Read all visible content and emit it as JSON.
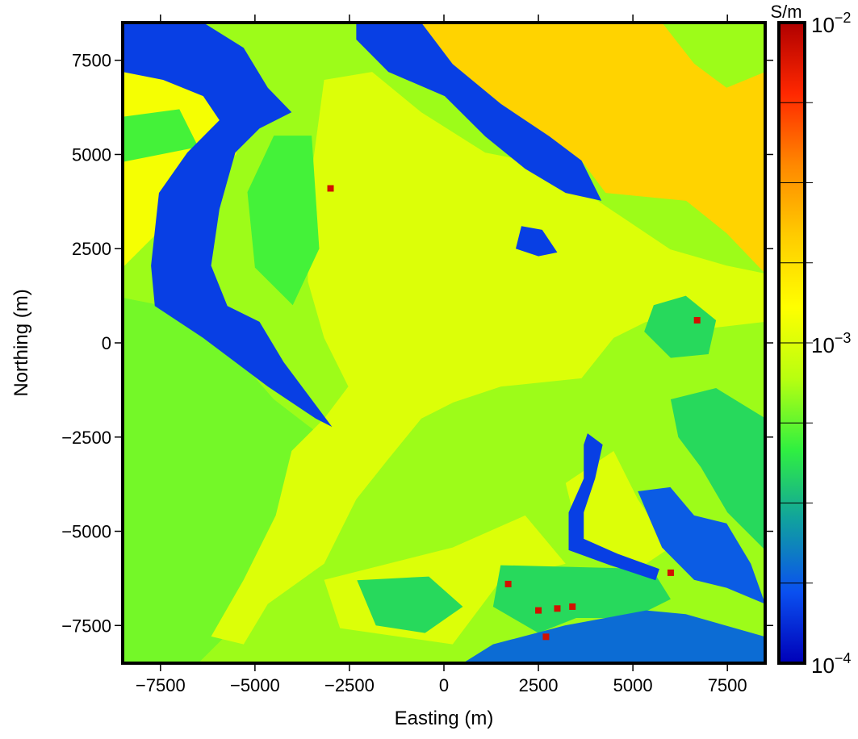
{
  "chart_data": {
    "type": "heatmap",
    "title": "",
    "xlabel": "Easting (m)",
    "ylabel": "Northing (m)",
    "xlim": [
      -8500,
      8500
    ],
    "ylim": [
      -8500,
      8500
    ],
    "xticks": [
      -7500,
      -5000,
      -2500,
      0,
      2500,
      5000,
      7500
    ],
    "xtick_labels": [
      "−7500",
      "−5000",
      "−2500",
      "0",
      "2500",
      "5000",
      "7500"
    ],
    "yticks": [
      -7500,
      -5000,
      -2500,
      0,
      2500,
      5000,
      7500
    ],
    "ytick_labels": [
      "−7500",
      "−5000",
      "−2500",
      "0",
      "2500",
      "5000",
      "7500"
    ],
    "grid": false,
    "colorbar": {
      "unit": "S/m",
      "scale": "log",
      "range": [
        0.0001,
        0.01
      ],
      "labels": [
        {
          "value": 0.01,
          "base": "10",
          "exp": "−2"
        },
        {
          "value": 0.001,
          "base": "10",
          "exp": "−3"
        },
        {
          "value": 0.0001,
          "base": "10",
          "exp": "−4"
        }
      ],
      "minor_divisions": 8,
      "colors": [
        "#0000b8",
        "#0a50f0",
        "#10a0a0",
        "#30f040",
        "#b8ff10",
        "#ffff00",
        "#ffcc00",
        "#ff8800",
        "#ff2800",
        "#b00000"
      ]
    },
    "background_value": 0.0007,
    "regions": [
      {
        "value": 0.0006,
        "polygon": [
          [
            -8500,
            1200
          ],
          [
            -6500,
            800
          ],
          [
            -4500,
            -1500
          ],
          [
            -3200,
            -2500
          ],
          [
            -4200,
            -5500
          ],
          [
            -5500,
            -7500
          ],
          [
            -6500,
            -8500
          ],
          [
            -8500,
            -8500
          ]
        ]
      },
      {
        "value": 0.0012,
        "polygon": [
          [
            -8500,
            7830
          ],
          [
            -6500,
            7700
          ],
          [
            -5300,
            6500
          ],
          [
            -5500,
            5000
          ],
          [
            -7500,
            3000
          ],
          [
            -8500,
            2000
          ]
        ]
      },
      {
        "value": 0.0005,
        "polygon": [
          [
            -8500,
            6000
          ],
          [
            -7000,
            6200
          ],
          [
            -6500,
            5200
          ],
          [
            -8500,
            4800
          ]
        ]
      },
      {
        "value": 0.002,
        "polygon": [
          [
            -600,
            8500
          ],
          [
            8500,
            8500
          ],
          [
            8500,
            1840
          ],
          [
            7480,
            2910
          ],
          [
            6410,
            3770
          ],
          [
            4280,
            3980
          ],
          [
            3640,
            4840
          ],
          [
            2150,
            5270
          ],
          [
            1090,
            6340
          ],
          [
            -190,
            7190
          ]
        ]
      },
      {
        "value": 0.0007,
        "polygon": [
          [
            5770,
            8500
          ],
          [
            8500,
            8500
          ],
          [
            8500,
            7190
          ],
          [
            7480,
            6770
          ],
          [
            6620,
            7410
          ]
        ]
      },
      {
        "value": 0.001,
        "polygon": [
          [
            -3170,
            6980
          ],
          [
            -1900,
            7190
          ],
          [
            -600,
            6120
          ],
          [
            1090,
            5050
          ],
          [
            2150,
            4840
          ],
          [
            4070,
            3770
          ],
          [
            5990,
            2480
          ],
          [
            7480,
            2050
          ],
          [
            8500,
            1840
          ],
          [
            8500,
            560
          ],
          [
            6620,
            340
          ],
          [
            5350,
            560
          ],
          [
            4490,
            130
          ],
          [
            3640,
            -940
          ],
          [
            1510,
            -1160
          ],
          [
            250,
            -1580
          ],
          [
            -600,
            -2010
          ],
          [
            -1470,
            -3080
          ],
          [
            -2320,
            -4150
          ],
          [
            -3170,
            -5860
          ],
          [
            -4660,
            -6930
          ],
          [
            -5300,
            -8000
          ],
          [
            -6160,
            -7790
          ],
          [
            -5300,
            -6290
          ],
          [
            -4450,
            -4580
          ],
          [
            -4030,
            -2870
          ],
          [
            -3170,
            -2010
          ],
          [
            -2530,
            -1160
          ],
          [
            -3170,
            130
          ],
          [
            -3600,
            1630
          ],
          [
            -3600,
            3770
          ]
        ]
      },
      {
        "value": 0.001,
        "polygon": [
          [
            3220,
            -3720
          ],
          [
            4490,
            -2870
          ],
          [
            5130,
            -4150
          ],
          [
            5990,
            -5430
          ],
          [
            5350,
            -5860
          ],
          [
            3640,
            -5430
          ]
        ]
      },
      {
        "value": 0.001,
        "polygon": [
          [
            230,
            -5430
          ],
          [
            2150,
            -4580
          ],
          [
            3220,
            -5860
          ],
          [
            1510,
            -6290
          ],
          [
            230,
            -8000
          ],
          [
            -2750,
            -7570
          ],
          [
            -3170,
            -6290
          ]
        ]
      },
      {
        "value": 0.0005,
        "polygon": [
          [
            -4500,
            5500
          ],
          [
            -3500,
            5500
          ],
          [
            -3300,
            2500
          ],
          [
            -4000,
            1000
          ],
          [
            -5000,
            2000
          ],
          [
            -5200,
            4000
          ]
        ]
      },
      {
        "value": 0.0004,
        "polygon": [
          [
            5550,
            1000
          ],
          [
            6400,
            1250
          ],
          [
            7200,
            600
          ],
          [
            7000,
            -300
          ],
          [
            6000,
            -400
          ],
          [
            5300,
            300
          ]
        ]
      },
      {
        "value": 0.0004,
        "polygon": [
          [
            6000,
            -1500
          ],
          [
            7200,
            -1200
          ],
          [
            8500,
            -2000
          ],
          [
            8500,
            -5500
          ],
          [
            7500,
            -4500
          ],
          [
            6800,
            -3300
          ],
          [
            6200,
            -2500
          ]
        ]
      },
      {
        "value": 0.0004,
        "polygon": [
          [
            -2300,
            -6300
          ],
          [
            -400,
            -6200
          ],
          [
            500,
            -7000
          ],
          [
            -500,
            -7700
          ],
          [
            -1800,
            -7500
          ]
        ]
      },
      {
        "value": 0.0004,
        "polygon": [
          [
            1500,
            -5900
          ],
          [
            5500,
            -6000
          ],
          [
            6000,
            -6800
          ],
          [
            5000,
            -7300
          ],
          [
            3500,
            -7300
          ],
          [
            2500,
            -7700
          ],
          [
            1300,
            -7000
          ]
        ]
      },
      {
        "value": 0.00015,
        "polygon": [
          [
            -2320,
            8500
          ],
          [
            -600,
            8500
          ],
          [
            230,
            7400
          ],
          [
            1510,
            6340
          ],
          [
            2790,
            5480
          ],
          [
            3640,
            4840
          ],
          [
            4170,
            3770
          ],
          [
            3220,
            3980
          ],
          [
            2150,
            4620
          ],
          [
            1090,
            5480
          ],
          [
            20,
            6550
          ],
          [
            -1470,
            7190
          ],
          [
            -2320,
            8050
          ]
        ]
      },
      {
        "value": 0.00015,
        "polygon": [
          [
            -8500,
            8500
          ],
          [
            -6370,
            8500
          ],
          [
            -5300,
            7830
          ],
          [
            -4660,
            6770
          ],
          [
            -4030,
            6120
          ],
          [
            -4880,
            5690
          ],
          [
            -5520,
            5050
          ],
          [
            -5940,
            3550
          ],
          [
            -6160,
            2050
          ],
          [
            -5730,
            980
          ],
          [
            -4880,
            560
          ],
          [
            -4240,
            -510
          ],
          [
            -2960,
            -2230
          ],
          [
            -3390,
            -2010
          ],
          [
            -4660,
            -1160
          ],
          [
            -6370,
            130
          ],
          [
            -7650,
            980
          ],
          [
            -7750,
            2050
          ],
          [
            -7540,
            3980
          ],
          [
            -6790,
            5050
          ],
          [
            -5940,
            5910
          ],
          [
            -6370,
            6550
          ],
          [
            -7430,
            6980
          ],
          [
            -8500,
            7190
          ]
        ]
      },
      {
        "value": 0.00015,
        "polygon": [
          [
            2050,
            3100
          ],
          [
            2600,
            3000
          ],
          [
            3000,
            2400
          ],
          [
            2500,
            2300
          ],
          [
            1900,
            2500
          ]
        ]
      },
      {
        "value": 0.00018,
        "polygon": [
          [
            5130,
            -3940
          ],
          [
            5990,
            -3830
          ],
          [
            6620,
            -4580
          ],
          [
            7480,
            -4790
          ],
          [
            8120,
            -5860
          ],
          [
            8500,
            -6930
          ],
          [
            7480,
            -6500
          ],
          [
            6620,
            -6290
          ],
          [
            5770,
            -5430
          ]
        ]
      },
      {
        "value": 0.0002,
        "polygon": [
          [
            1300,
            -8000
          ],
          [
            3200,
            -7500
          ],
          [
            5350,
            -7100
          ],
          [
            6400,
            -7200
          ],
          [
            8500,
            -7800
          ],
          [
            8500,
            -8500
          ],
          [
            500,
            -8500
          ]
        ]
      },
      {
        "value": 0.00015,
        "polygon": [
          [
            3800,
            -2400
          ],
          [
            4200,
            -2700
          ],
          [
            4000,
            -3600
          ],
          [
            3700,
            -4500
          ],
          [
            3700,
            -5200
          ],
          [
            4600,
            -5600
          ],
          [
            5700,
            -6000
          ],
          [
            5600,
            -6300
          ],
          [
            4400,
            -5900
          ],
          [
            3300,
            -5500
          ],
          [
            3300,
            -4500
          ],
          [
            3700,
            -3600
          ],
          [
            3700,
            -2700
          ]
        ]
      }
    ],
    "specks": {
      "value": 0.008,
      "points": [
        [
          -3000,
          4100
        ],
        [
          2500,
          -7100
        ],
        [
          3400,
          -7000
        ],
        [
          2700,
          -7800
        ],
        [
          6700,
          600
        ],
        [
          1700,
          -6400
        ],
        [
          6000,
          -6100
        ],
        [
          3000,
          -7050
        ]
      ]
    }
  }
}
